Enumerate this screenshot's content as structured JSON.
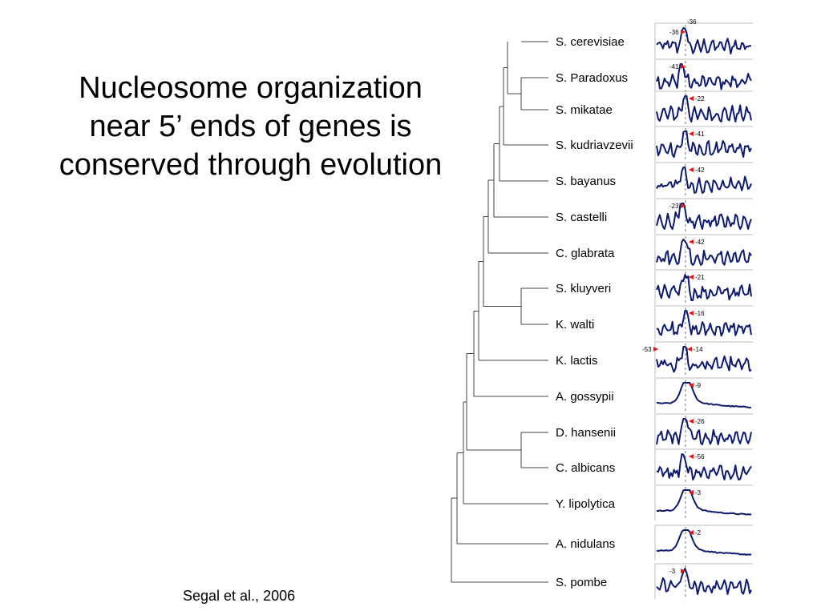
{
  "title_lines": [
    "Nucleosome organization",
    "near 5’ ends of genes is",
    "conserved through evolution"
  ],
  "citation": "Segal et al., 2006",
  "colors": {
    "profile": "#0d1a70",
    "marker": "#e8140e",
    "tss_line": "#8a8a8a"
  },
  "species": [
    {
      "name": "S. cerevisiae",
      "peak": 0.3,
      "offsets": [
        "-36",
        "-36"
      ]
    },
    {
      "name": "S. Paradoxus",
      "peak": 0.28,
      "offsets": [
        "-41"
      ]
    },
    {
      "name": "S. mikatae",
      "peak": 0.31,
      "offsets": [
        "-22"
      ]
    },
    {
      "name": "S. kudriavzevii",
      "peak": 0.31,
      "offsets": [
        "-41"
      ]
    },
    {
      "name": "S. bayanus",
      "peak": 0.3,
      "offsets": [
        "-42"
      ]
    },
    {
      "name": "S. castelli",
      "peak": 0.28,
      "offsets": [
        "-23"
      ]
    },
    {
      "name": "C. glabrata",
      "peak": 0.31,
      "offsets": [
        "-42"
      ]
    },
    {
      "name": "S. kluyveri",
      "peak": 0.31,
      "offsets": [
        "-21"
      ]
    },
    {
      "name": "K. walti",
      "peak": 0.31,
      "offsets": [
        "-16"
      ]
    },
    {
      "name": "K. lactis",
      "peak": 0.3,
      "offsets": [
        "-53",
        "-14"
      ]
    },
    {
      "name": "A. gossypii",
      "peak": 0.32,
      "offsets": [
        "-9"
      ]
    },
    {
      "name": "D. hansenii",
      "peak": 0.31,
      "offsets": [
        "-26"
      ]
    },
    {
      "name": "C. albicans",
      "peak": 0.29,
      "offsets": [
        "-56"
      ]
    },
    {
      "name": "Y. lipolytica",
      "peak": 0.32,
      "offsets": [
        "-3"
      ]
    },
    {
      "name": "A. nidulans",
      "peak": 0.31,
      "offsets": [
        "-2"
      ]
    },
    {
      "name": "S. pombe",
      "peak": 0.3,
      "offsets": [
        "-3"
      ]
    }
  ]
}
